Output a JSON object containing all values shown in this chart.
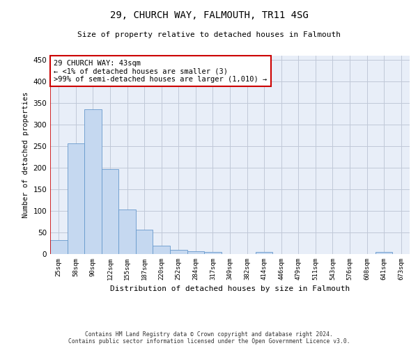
{
  "title": "29, CHURCH WAY, FALMOUTH, TR11 4SG",
  "subtitle": "Size of property relative to detached houses in Falmouth",
  "xlabel": "Distribution of detached houses by size in Falmouth",
  "ylabel": "Number of detached properties",
  "bar_color": "#c5d8f0",
  "bar_edge_color": "#6699cc",
  "background_color": "#ffffff",
  "axes_bg_color": "#e8eef8",
  "grid_color": "#c0c8d8",
  "categories": [
    "25sqm",
    "58sqm",
    "90sqm",
    "122sqm",
    "155sqm",
    "187sqm",
    "220sqm",
    "252sqm",
    "284sqm",
    "317sqm",
    "349sqm",
    "382sqm",
    "414sqm",
    "446sqm",
    "479sqm",
    "511sqm",
    "543sqm",
    "576sqm",
    "608sqm",
    "641sqm",
    "673sqm"
  ],
  "values": [
    33,
    256,
    335,
    197,
    104,
    57,
    19,
    10,
    6,
    5,
    0,
    0,
    5,
    0,
    0,
    0,
    0,
    0,
    0,
    5,
    0
  ],
  "property_label": "29 CHURCH WAY: 43sqm",
  "arrow_text_left": "← <1% of detached houses are smaller (3)",
  "arrow_text_right": ">99% of semi-detached houses are larger (1,010) →",
  "ylim": [
    0,
    460
  ],
  "yticks": [
    0,
    50,
    100,
    150,
    200,
    250,
    300,
    350,
    400,
    450
  ],
  "annotation_box_color": "#ffffff",
  "annotation_border_color": "#cc0000",
  "vline_color": "#cc0000",
  "footer_line1": "Contains HM Land Registry data © Crown copyright and database right 2024.",
  "footer_line2": "Contains public sector information licensed under the Open Government Licence v3.0."
}
